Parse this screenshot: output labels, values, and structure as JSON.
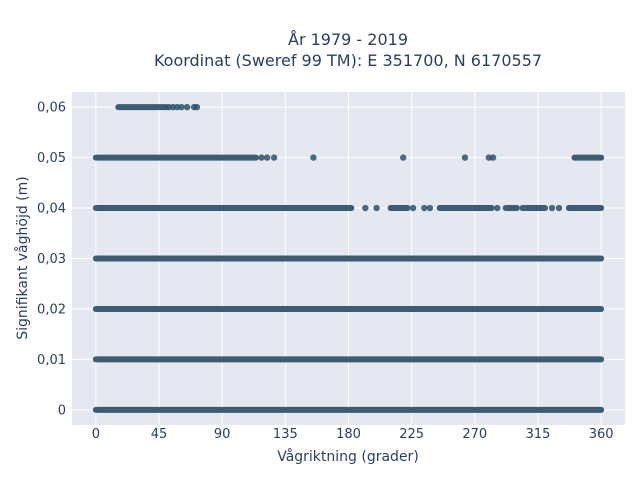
{
  "chart_data": {
    "type": "scatter",
    "title_lines": [
      "År 1979 - 2019",
      "Koordinat (Sweref 99 TM): E 351700, N 6170557"
    ],
    "xlabel": "Vågriktning (grader)",
    "ylabel": "Signifikant våghöjd (m)",
    "xlim": [
      -17,
      377
    ],
    "ylim": [
      -0.003,
      0.063
    ],
    "xticks": [
      0,
      45,
      90,
      135,
      180,
      225,
      270,
      315,
      360
    ],
    "xtick_labels": [
      "0",
      "45",
      "90",
      "135",
      "180",
      "225",
      "270",
      "315",
      "360"
    ],
    "yticks": [
      0,
      0.01,
      0.02,
      0.03,
      0.04,
      0.05,
      0.06
    ],
    "ytick_labels": [
      "0",
      "0,01",
      "0,02",
      "0,03",
      "0,04",
      "0,05",
      "0,06"
    ],
    "grid": true,
    "legend": "none",
    "marker_color": "#2f5068",
    "plot_background": "#e5e8f0",
    "grid_color": "#ffffff",
    "series": [
      {
        "levels": [
          {
            "y": 0,
            "segments": [
              [
                0,
                360
              ]
            ],
            "isolated": []
          },
          {
            "y": 0.01,
            "segments": [
              [
                0,
                360
              ]
            ],
            "isolated": []
          },
          {
            "y": 0.02,
            "segments": [
              [
                0,
                360
              ]
            ],
            "isolated": []
          },
          {
            "y": 0.03,
            "segments": [
              [
                0,
                360
              ]
            ],
            "isolated": []
          },
          {
            "y": 0.04,
            "segments": [
              [
                0,
                182
              ],
              [
                210,
                222
              ],
              [
                245,
                282
              ],
              [
                292,
                300
              ],
              [
                304,
                320
              ],
              [
                337,
                360
              ]
            ],
            "isolated": [
              192,
              200,
              226,
              234,
              238,
              286,
              325,
              330
            ]
          },
          {
            "y": 0.05,
            "segments": [
              [
                0,
                114
              ],
              [
                341,
                360
              ]
            ],
            "isolated": [
              118,
              122,
              127,
              155,
              219,
              263,
              280,
              283
            ]
          },
          {
            "y": 0.06,
            "segments": [
              [
                16,
                50
              ]
            ],
            "isolated": [
              52,
              55,
              58,
              61,
              65,
              70,
              72
            ]
          }
        ]
      }
    ]
  }
}
